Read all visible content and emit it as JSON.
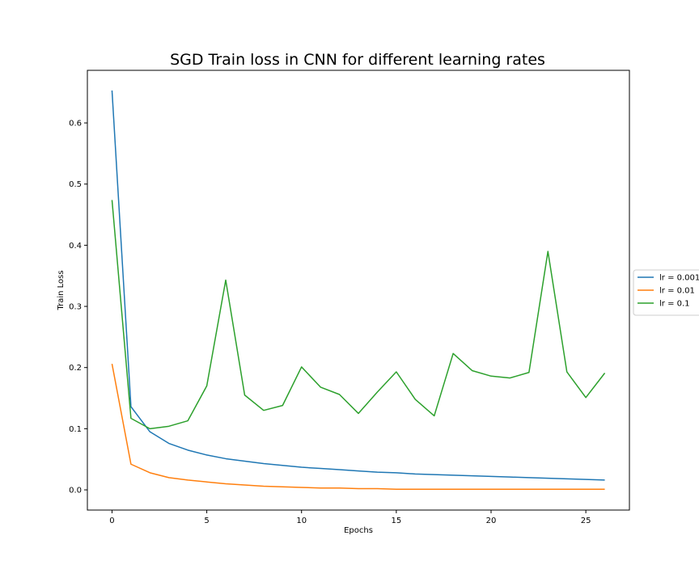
{
  "chart_data": {
    "type": "line",
    "title": "SGD Train loss in CNN for different learning rates",
    "xlabel": "Epochs",
    "ylabel": "Train Loss",
    "xlim": [
      -1.3,
      27.3
    ],
    "ylim": [
      -0.033,
      0.686
    ],
    "xticks": [
      0,
      5,
      10,
      15,
      20,
      25
    ],
    "yticks": [
      0.0,
      0.1,
      0.2,
      0.3,
      0.4,
      0.5,
      0.6
    ],
    "grid": false,
    "legend_position": "right",
    "x": [
      0,
      1,
      2,
      3,
      4,
      5,
      6,
      7,
      8,
      9,
      10,
      11,
      12,
      13,
      14,
      15,
      16,
      17,
      18,
      19,
      20,
      21,
      22,
      23,
      24,
      25,
      26
    ],
    "series": [
      {
        "name": "lr = 0.001",
        "color": "#1f77b4",
        "values": [
          0.653,
          0.136,
          0.095,
          0.076,
          0.065,
          0.057,
          0.051,
          0.047,
          0.043,
          0.04,
          0.037,
          0.035,
          0.033,
          0.031,
          0.029,
          0.028,
          0.026,
          0.025,
          0.024,
          0.023,
          0.022,
          0.021,
          0.02,
          0.019,
          0.018,
          0.017,
          0.016
        ]
      },
      {
        "name": "lr = 0.01",
        "color": "#ff7f0e",
        "values": [
          0.206,
          0.042,
          0.028,
          0.02,
          0.016,
          0.013,
          0.01,
          0.008,
          0.006,
          0.005,
          0.004,
          0.003,
          0.003,
          0.002,
          0.002,
          0.001,
          0.001,
          0.001,
          0.001,
          0.001,
          0.001,
          0.001,
          0.001,
          0.001,
          0.001,
          0.001,
          0.001
        ]
      },
      {
        "name": "lr = 0.1",
        "color": "#2ca02c",
        "values": [
          0.474,
          0.117,
          0.1,
          0.104,
          0.113,
          0.17,
          0.343,
          0.155,
          0.13,
          0.138,
          0.201,
          0.168,
          0.156,
          0.125,
          0.16,
          0.193,
          0.148,
          0.121,
          0.223,
          0.195,
          0.186,
          0.183,
          0.192,
          0.39,
          0.193,
          0.151,
          0.191
        ]
      }
    ]
  }
}
